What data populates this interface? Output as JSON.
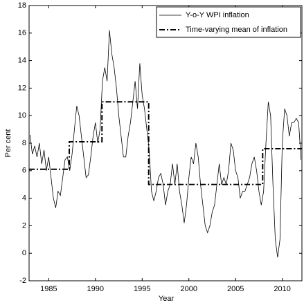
{
  "chart_data": {
    "type": "line",
    "xlabel": "Year",
    "ylabel": "Per cent",
    "xlim": [
      1982.9,
      2012.1
    ],
    "ylim": [
      -2,
      18
    ],
    "xticks": [
      1985,
      1990,
      1995,
      2000,
      2005,
      2010
    ],
    "yticks": [
      -2,
      0,
      2,
      4,
      6,
      8,
      10,
      12,
      14,
      16,
      18
    ],
    "legend": "upper right",
    "series": [
      {
        "name": "Y-o-Y WPI inflation",
        "color": "#000000",
        "style": "solid",
        "x": [
          1983,
          1983.25,
          1983.5,
          1983.75,
          1984,
          1984.25,
          1984.5,
          1984.75,
          1985,
          1985.25,
          1985.5,
          1985.75,
          1986,
          1986.25,
          1986.5,
          1986.75,
          1987,
          1987.25,
          1987.5,
          1987.75,
          1988,
          1988.25,
          1988.5,
          1988.75,
          1989,
          1989.25,
          1989.5,
          1989.75,
          1990,
          1990.25,
          1990.5,
          1990.75,
          1991,
          1991.25,
          1991.5,
          1991.75,
          1992,
          1992.25,
          1992.5,
          1992.75,
          1993,
          1993.25,
          1993.5,
          1993.75,
          1994,
          1994.25,
          1994.5,
          1994.75,
          1995,
          1995.25,
          1995.5,
          1995.75,
          1996,
          1996.25,
          1996.5,
          1996.75,
          1997,
          1997.25,
          1997.5,
          1997.75,
          1998,
          1998.25,
          1998.5,
          1998.75,
          1999,
          1999.25,
          1999.5,
          1999.75,
          2000,
          2000.25,
          2000.5,
          2000.75,
          2001,
          2001.25,
          2001.5,
          2001.75,
          2002,
          2002.25,
          2002.5,
          2002.75,
          2003,
          2003.25,
          2003.5,
          2003.75,
          2004,
          2004.25,
          2004.5,
          2004.75,
          2005,
          2005.25,
          2005.5,
          2005.75,
          2006,
          2006.25,
          2006.5,
          2006.75,
          2007,
          2007.25,
          2007.5,
          2007.75,
          2008,
          2008.25,
          2008.5,
          2008.75,
          2009,
          2009.25,
          2009.5,
          2009.75,
          2010,
          2010.25,
          2010.5,
          2010.75,
          2011,
          2011.25,
          2011.5,
          2011.75,
          2012
        ],
        "values": [
          8.6,
          7.2,
          7.8,
          7.0,
          8.0,
          6.5,
          7.5,
          6.0,
          7.0,
          5.5,
          4.0,
          3.3,
          4.5,
          4.2,
          5.5,
          6.8,
          7.0,
          6.0,
          7.2,
          9.0,
          10.7,
          10.0,
          8.5,
          7.0,
          5.5,
          5.7,
          7.0,
          8.5,
          9.5,
          8.0,
          9.0,
          12.5,
          13.5,
          12.5,
          16.2,
          14.5,
          13.5,
          12.0,
          10.0,
          8.5,
          7.0,
          7.0,
          8.5,
          9.5,
          11.0,
          12.5,
          10.5,
          13.8,
          11.5,
          10.5,
          9.0,
          7.5,
          4.5,
          3.8,
          4.5,
          5.5,
          5.8,
          5.0,
          3.5,
          4.5,
          5.0,
          6.5,
          5.0,
          6.5,
          4.5,
          3.5,
          2.2,
          3.5,
          5.5,
          7.0,
          6.5,
          8.0,
          7.0,
          5.0,
          3.5,
          2.0,
          1.5,
          2.0,
          3.0,
          3.5,
          5.0,
          6.5,
          5.0,
          5.5,
          5.0,
          6.0,
          8.0,
          7.5,
          6.0,
          5.5,
          4.0,
          4.5,
          4.5,
          5.0,
          5.5,
          6.5,
          7.0,
          6.0,
          4.5,
          3.5,
          4.5,
          8.0,
          11.0,
          10.0,
          5.0,
          1.0,
          -0.3,
          1.0,
          8.0,
          10.5,
          10.0,
          8.5,
          9.5,
          9.5,
          9.8,
          9.5,
          6.8
        ]
      },
      {
        "name": "Time-varying mean of inflation",
        "color": "#000000",
        "style": "dashdot",
        "x": [
          1982.9,
          1987.2,
          1987.2,
          1990.7,
          1990.7,
          1995.7,
          1995.7,
          2007.9,
          2007.9,
          2012.1
        ],
        "values": [
          6.1,
          6.1,
          8.1,
          8.1,
          11.0,
          11.0,
          5.0,
          5.0,
          7.6,
          7.6
        ]
      }
    ]
  }
}
